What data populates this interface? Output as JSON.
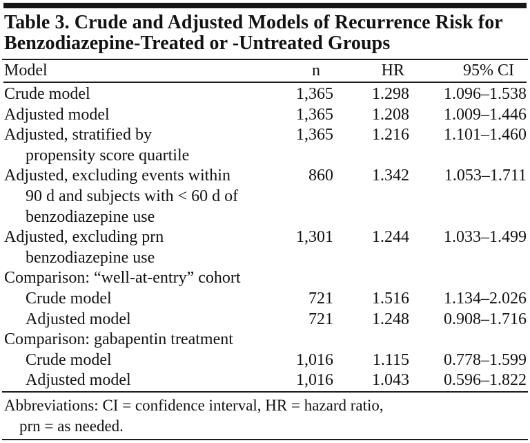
{
  "table": {
    "title_line1": "Table 3. Crude and Adjusted Models of Recurrence Risk for",
    "title_line2": "Benzodiazepine-Treated or -Untreated Groups",
    "columns": {
      "model": "Model",
      "n": "n",
      "hr": "HR",
      "ci": "95% CI"
    },
    "rows": [
      {
        "label_lines": [
          "Crude model"
        ],
        "indented": false,
        "n": "1,365",
        "hr": "1.298",
        "ci": "1.096–1.538"
      },
      {
        "label_lines": [
          "Adjusted model"
        ],
        "indented": false,
        "n": "1,365",
        "hr": "1.208",
        "ci": "1.009–1.446"
      },
      {
        "label_lines": [
          "Adjusted, stratified by",
          "propensity score quartile"
        ],
        "indented": false,
        "n": "1,365",
        "hr": "1.216",
        "ci": "1.101–1.460"
      },
      {
        "label_lines": [
          "Adjusted, excluding events within",
          "90 d and subjects with < 60 d of",
          "benzodiazepine use"
        ],
        "indented": false,
        "n": "860",
        "hr": "1.342",
        "ci": "1.053–1.711"
      },
      {
        "label_lines": [
          "Adjusted, excluding prn",
          "benzodiazepine use"
        ],
        "indented": false,
        "n": "1,301",
        "hr": "1.244",
        "ci": "1.033–1.499"
      },
      {
        "label_lines": [
          "Comparison: “well-at-entry” cohort"
        ],
        "indented": false,
        "n": "",
        "hr": "",
        "ci": ""
      },
      {
        "label_lines": [
          "Crude model"
        ],
        "indented": true,
        "n": "721",
        "hr": "1.516",
        "ci": "1.134–2.026"
      },
      {
        "label_lines": [
          "Adjusted model"
        ],
        "indented": true,
        "n": "721",
        "hr": "1.248",
        "ci": "0.908–1.716"
      },
      {
        "label_lines": [
          "Comparison: gabapentin treatment"
        ],
        "indented": false,
        "n": "",
        "hr": "",
        "ci": ""
      },
      {
        "label_lines": [
          "Crude model"
        ],
        "indented": true,
        "n": "1,016",
        "hr": "1.115",
        "ci": "0.778–1.599"
      },
      {
        "label_lines": [
          "Adjusted model"
        ],
        "indented": true,
        "n": "1,016",
        "hr": "1.043",
        "ci": "0.596–1.822"
      }
    ],
    "footnote_line1": "Abbreviations: CI = confidence interval, HR = hazard ratio,",
    "footnote_line2": "prn = as needed.",
    "colors": {
      "text": "#121212",
      "background": "#ffffff",
      "rule": "#1b1b1b"
    }
  }
}
